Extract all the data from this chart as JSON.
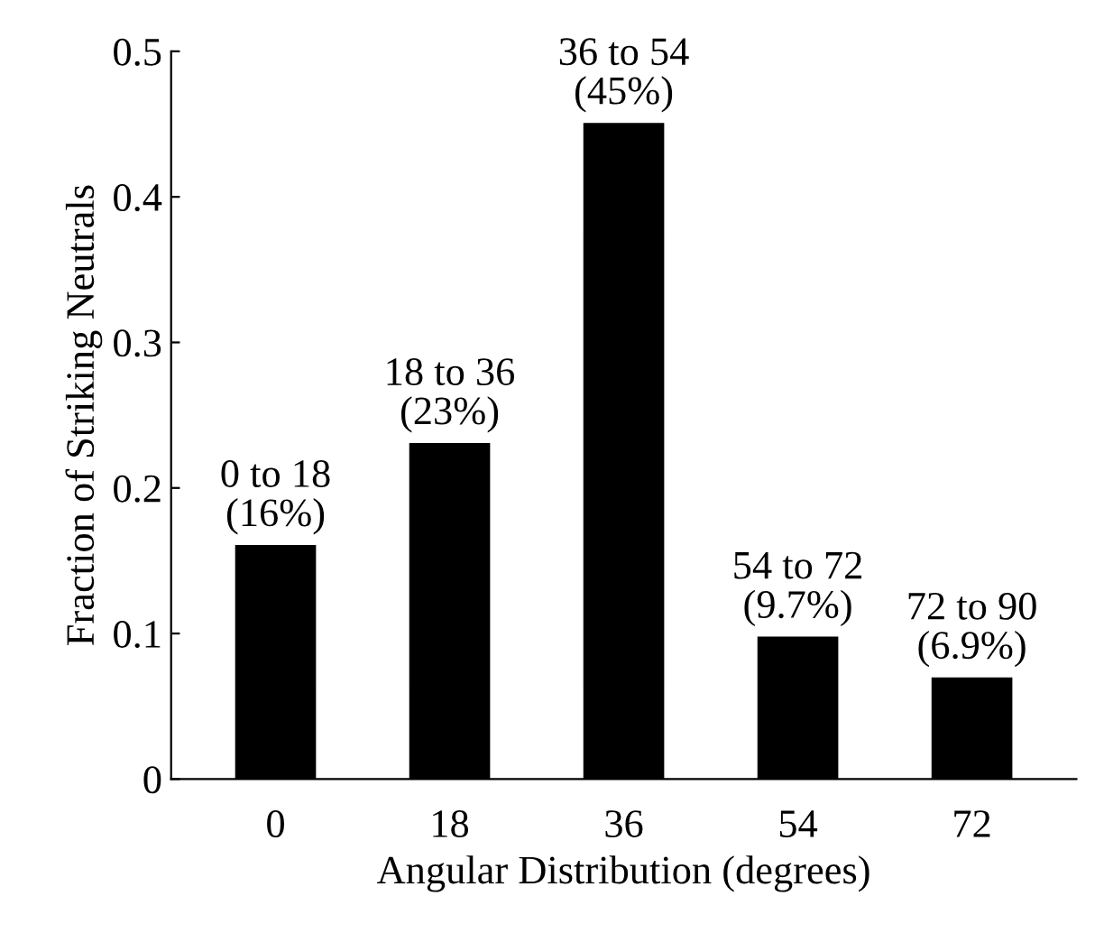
{
  "chart_data": {
    "type": "bar",
    "xlabel": "Angular Distribution (degrees)",
    "ylabel": "Fraction of Striking Neutrals",
    "categories": [
      "0",
      "18",
      "36",
      "54",
      "72"
    ],
    "values": [
      0.16,
      0.23,
      0.45,
      0.097,
      0.069
    ],
    "value_labels": [
      "0 to 18\n(16%)",
      "18 to 36\n(23%)",
      "36 to 54\n(45%)",
      "54 to 72\n(9.7%)",
      "72 to 90\n(6.9%)"
    ],
    "color": "#000000",
    "ylim": [
      0,
      0.5
    ],
    "yticks": [
      0,
      0.1,
      0.2,
      0.3,
      0.4,
      0.5
    ],
    "grid": false,
    "legend": false
  }
}
